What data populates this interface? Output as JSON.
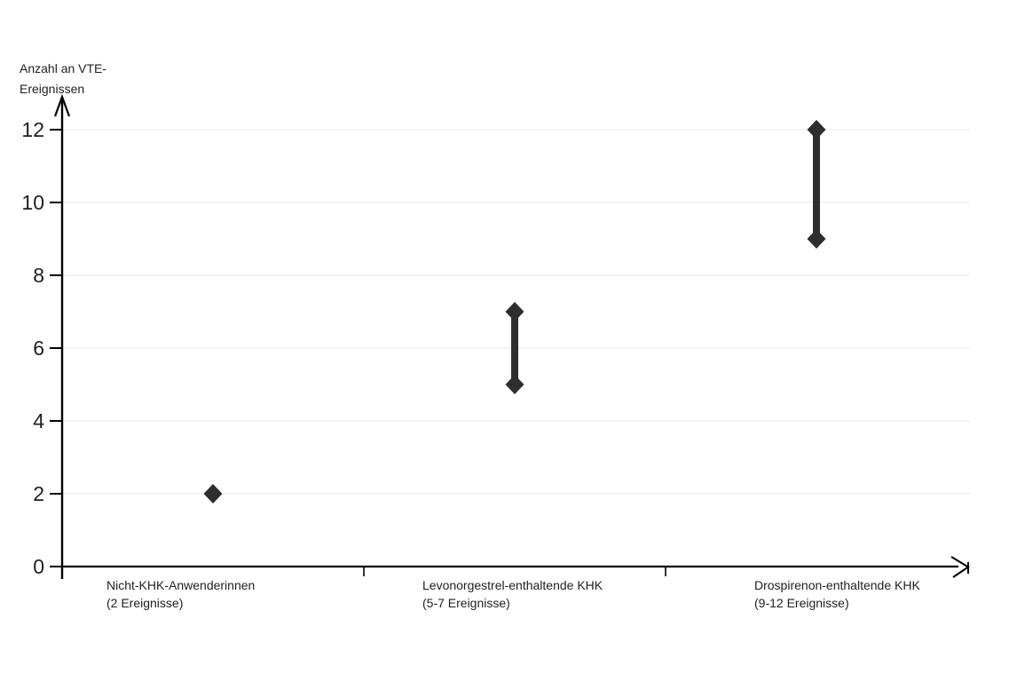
{
  "chart_data": {
    "type": "scatter",
    "subtype": "vertical-range-dot-plot",
    "title": "",
    "xlabel": "",
    "ylabel": "Anzahl an VTE-Ereignissen",
    "ylabel_lines": [
      "Anzahl an VTE-",
      "Ereignissen"
    ],
    "ylim": [
      0,
      12
    ],
    "y_ticks": [
      "0",
      "2",
      "4",
      "6",
      "8",
      "10",
      "12"
    ],
    "grid": "horizontal-light",
    "legend": "none",
    "marker": "diamond",
    "colors": {
      "marker": "#2e2e2e",
      "range_bar": "#2e2e2e",
      "axis": "#000000",
      "gridline": "#e9e9e9",
      "text": "#1f1f1f",
      "background": "#ffffff"
    },
    "categories": [
      {
        "label": "Nicht-KHK-Anwenderinnen",
        "sublabel": "(2 Ereignisse)",
        "values": [
          2
        ]
      },
      {
        "label": "Levonorgestrel-enthaltende KHK",
        "sublabel": "(5-7 Ereignisse)",
        "values": [
          5,
          7
        ]
      },
      {
        "label": "Drospirenon-enthaltende KHK",
        "sublabel": "(9-12 Ereignisse)",
        "values": [
          9,
          12
        ]
      }
    ]
  }
}
